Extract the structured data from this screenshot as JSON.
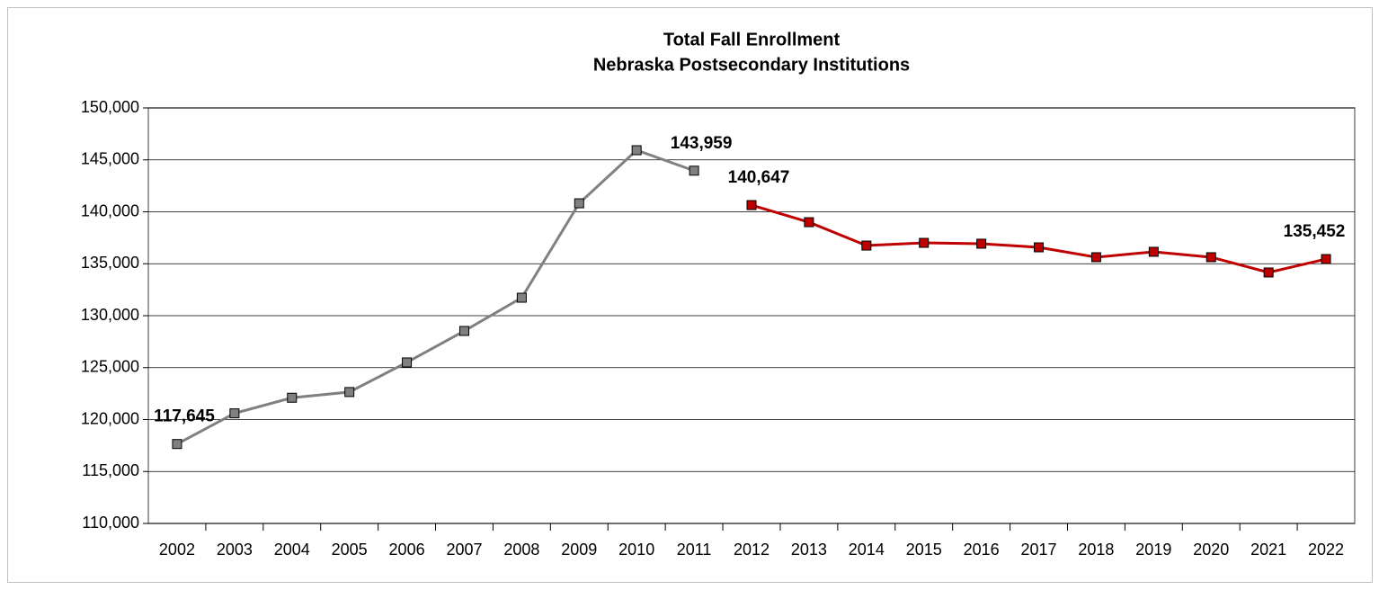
{
  "chart_data": {
    "type": "line",
    "title": "Total Fall Enrollment",
    "subtitle": "Nebraska Postsecondary Institutions",
    "categories": [
      "2002",
      "2003",
      "2004",
      "2005",
      "2006",
      "2007",
      "2008",
      "2009",
      "2010",
      "2011",
      "2012",
      "2013",
      "2014",
      "2015",
      "2016",
      "2017",
      "2018",
      "2019",
      "2020",
      "2021",
      "2022"
    ],
    "series": [
      {
        "name": null,
        "color": "#808080",
        "values": [
          117645,
          120600,
          122100,
          122650,
          125500,
          128530,
          131730,
          140820,
          145930,
          143959,
          null,
          null,
          null,
          null,
          null,
          null,
          null,
          null,
          null,
          null,
          null
        ],
        "value_labels": [
          "117,645",
          null,
          null,
          null,
          null,
          null,
          null,
          null,
          null,
          "143,959",
          null,
          null,
          null,
          null,
          null,
          null,
          null,
          null,
          null,
          null,
          null
        ]
      },
      {
        "name": null,
        "color": "#c00000",
        "values": [
          null,
          null,
          null,
          null,
          null,
          null,
          null,
          null,
          null,
          null,
          140647,
          139000,
          136750,
          137010,
          136930,
          136580,
          135630,
          136150,
          135630,
          134160,
          135452
        ],
        "value_labels": [
          null,
          null,
          null,
          null,
          null,
          null,
          null,
          null,
          null,
          null,
          "140,647",
          null,
          null,
          null,
          null,
          null,
          null,
          null,
          null,
          null,
          "135,452"
        ]
      }
    ],
    "ylim": [
      110000,
      150000
    ],
    "yticks": [
      {
        "value": 110000,
        "label": "110,000"
      },
      {
        "value": 115000,
        "label": "115,000"
      },
      {
        "value": 120000,
        "label": "120,000"
      },
      {
        "value": 125000,
        "label": "125,000"
      },
      {
        "value": 130000,
        "label": "130,000"
      },
      {
        "value": 135000,
        "label": "135,000"
      },
      {
        "value": 140000,
        "label": "140,000"
      },
      {
        "value": 145000,
        "label": "145,000"
      },
      {
        "value": 150000,
        "label": "150,000"
      }
    ],
    "grid": true
  }
}
